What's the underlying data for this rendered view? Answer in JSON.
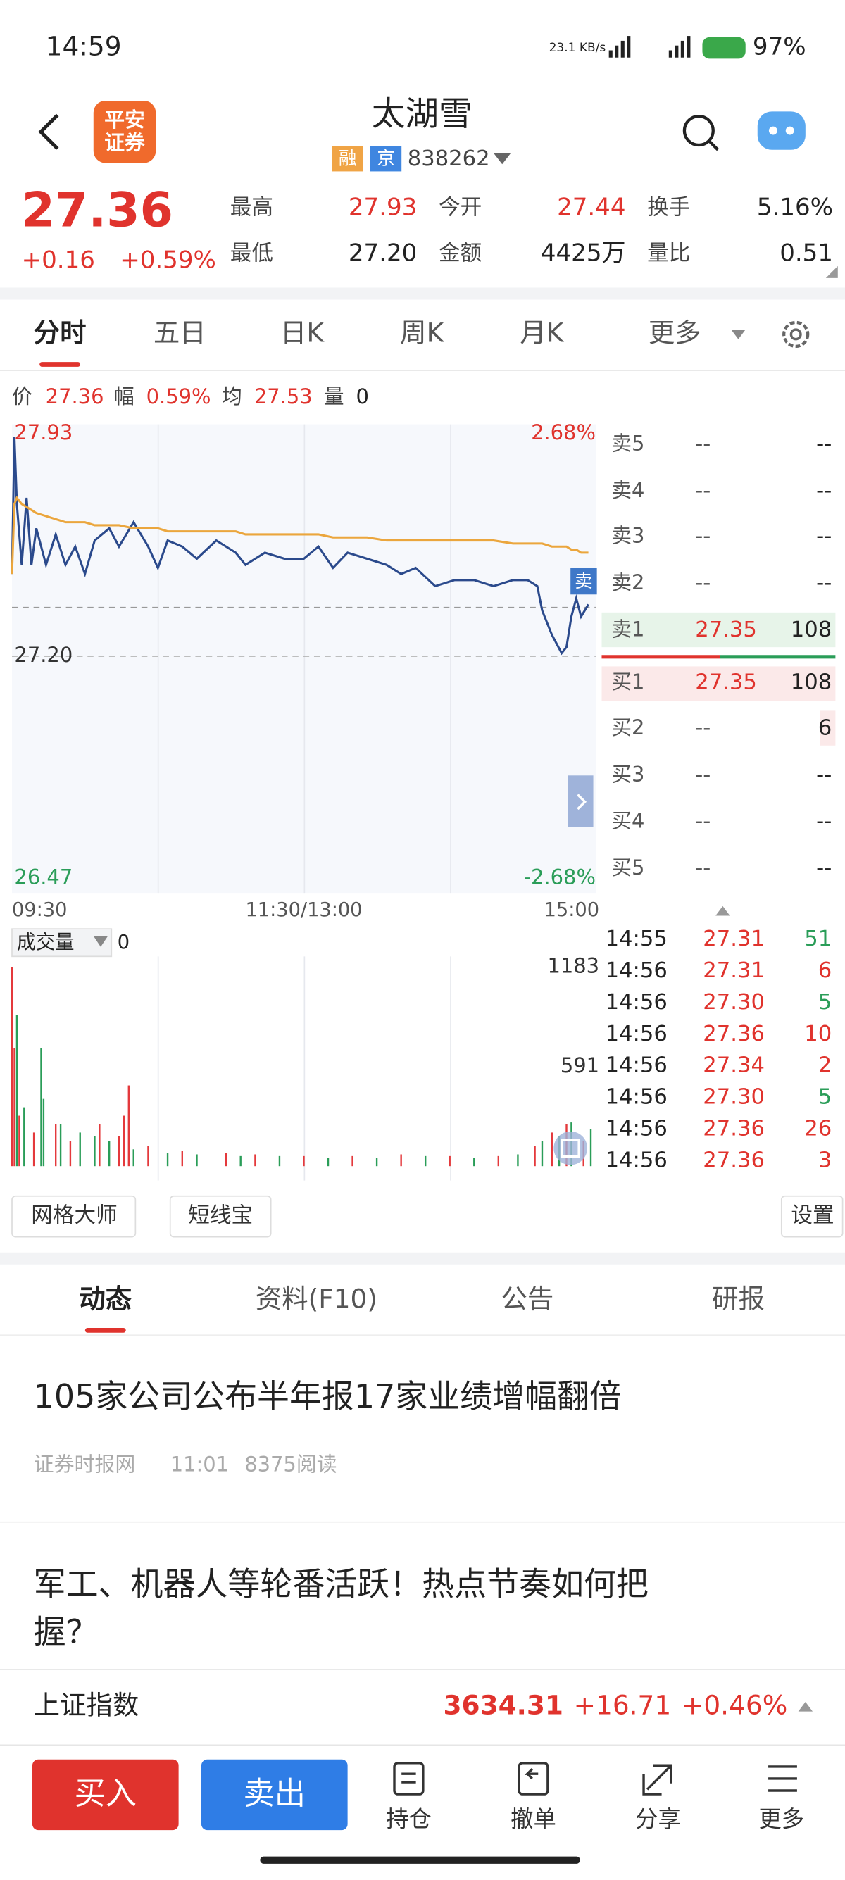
{
  "status_bar": {
    "time": "14:59",
    "net_speed": "23.1 KB/s",
    "battery": "97%"
  },
  "header": {
    "logo_top": "平安",
    "logo_bottom": "证券",
    "title": "太湖雪",
    "tags": [
      "融",
      "京"
    ],
    "code": "838262"
  },
  "quote": {
    "price": "27.36",
    "change": "+0.16",
    "change_pct": "+0.59%",
    "stats": [
      {
        "label": "最高",
        "value": "27.93",
        "color": "#e0332d"
      },
      {
        "label": "今开",
        "value": "27.44",
        "color": "#e0332d"
      },
      {
        "label": "换手",
        "value": "5.16%",
        "color": "#222222"
      },
      {
        "label": "最低",
        "value": "27.20",
        "color": "#222222"
      },
      {
        "label": "金额",
        "value": "4425万",
        "color": "#222222"
      },
      {
        "label": "量比",
        "value": "0.51",
        "color": "#222222"
      }
    ]
  },
  "tabs": [
    "分时",
    "五日",
    "日K",
    "周K",
    "月K",
    "更多"
  ],
  "info_bar": [
    {
      "label": "价",
      "value": "27.36"
    },
    {
      "label": "幅",
      "value": "0.59%"
    },
    {
      "label": "均",
      "value": "27.53"
    },
    {
      "label": "量",
      "value": "0"
    }
  ],
  "chart_data": [
    {
      "type": "line",
      "xlim": [
        0,
        240
      ],
      "xticks": [
        {
          "value": 0,
          "label": "09:30"
        },
        {
          "value": 120,
          "label": "11:30/13:00"
        },
        {
          "value": 240,
          "label": "15:00"
        }
      ],
      "ylim": [
        26.47,
        27.93
      ],
      "yticks": [
        {
          "value": 27.93,
          "label": "27.93"
        },
        {
          "value": 27.2,
          "label": "27.20"
        },
        {
          "value": 26.47,
          "label": "26.47"
        }
      ],
      "y2lim": [
        -2.68,
        2.68
      ],
      "y2ticks": [
        {
          "value": 2.68,
          "label": "2.68%"
        },
        {
          "value": -2.68,
          "label": "-2.68%"
        }
      ],
      "last_price": 27.36,
      "x": [
        0,
        1,
        2,
        4,
        6,
        8,
        10,
        14,
        18,
        22,
        26,
        30,
        34,
        40,
        44,
        50,
        56,
        60,
        64,
        70,
        76,
        84,
        92,
        96,
        104,
        112,
        120,
        126,
        132,
        138,
        146,
        154,
        160,
        166,
        174,
        182,
        190,
        198,
        206,
        212,
        216,
        218,
        222,
        226,
        228,
        230,
        232,
        234,
        237
      ],
      "series": [
        {
          "color": "#2b4a8c",
          "values": [
            27.47,
            27.92,
            27.7,
            27.5,
            27.72,
            27.5,
            27.62,
            27.5,
            27.6,
            27.5,
            27.56,
            27.47,
            27.58,
            27.62,
            27.56,
            27.64,
            27.56,
            27.49,
            27.58,
            27.56,
            27.52,
            27.58,
            27.54,
            27.5,
            27.54,
            27.52,
            27.52,
            27.56,
            27.49,
            27.54,
            27.52,
            27.5,
            27.47,
            27.49,
            27.43,
            27.45,
            27.45,
            27.43,
            27.45,
            27.45,
            27.43,
            27.35,
            27.27,
            27.21,
            27.23,
            27.33,
            27.39,
            27.33,
            27.37
          ]
        },
        {
          "color": "#eba63d",
          "values": [
            27.47,
            27.7,
            27.72,
            27.7,
            27.69,
            27.68,
            27.67,
            27.66,
            27.65,
            27.64,
            27.64,
            27.64,
            27.63,
            27.63,
            27.63,
            27.62,
            27.62,
            27.62,
            27.61,
            27.61,
            27.61,
            27.61,
            27.61,
            27.6,
            27.6,
            27.6,
            27.6,
            27.6,
            27.59,
            27.59,
            27.59,
            27.58,
            27.58,
            27.58,
            27.58,
            27.58,
            27.58,
            27.58,
            27.57,
            27.57,
            27.57,
            27.57,
            27.56,
            27.56,
            27.56,
            27.55,
            27.55,
            27.54,
            27.54
          ]
        }
      ]
    },
    {
      "type": "bar",
      "title": "成交量",
      "current": 0,
      "xlim": [
        0,
        240
      ],
      "ylim": [
        0,
        1183
      ],
      "yticks": [
        1183,
        591
      ],
      "x": [
        0,
        1,
        2,
        3,
        5,
        9,
        12,
        13,
        18,
        20,
        24,
        28,
        34,
        36,
        40,
        44,
        46,
        48,
        50,
        56,
        64,
        70,
        76,
        88,
        94,
        100,
        110,
        120,
        130,
        140,
        150,
        160,
        170,
        180,
        190,
        200,
        208,
        215,
        218,
        222,
        225,
        228,
        230,
        235,
        238
      ],
      "values": [
        1183,
        700,
        900,
        300,
        350,
        200,
        700,
        400,
        250,
        250,
        150,
        200,
        180,
        250,
        150,
        180,
        300,
        480,
        100,
        120,
        80,
        90,
        70,
        80,
        60,
        70,
        60,
        60,
        50,
        60,
        50,
        70,
        60,
        60,
        50,
        60,
        70,
        120,
        150,
        200,
        180,
        250,
        260,
        150,
        220
      ],
      "colors": [
        "#e4393c",
        "#e4393c",
        "#2a9d58",
        "#e4393c",
        "#2a9d58",
        "#e4393c",
        "#2a9d58",
        "#2a9d58",
        "#e4393c",
        "#2a9d58",
        "#e4393c",
        "#2a9d58",
        "#2a9d58",
        "#e4393c",
        "#2a9d58",
        "#e4393c",
        "#e4393c",
        "#e4393c",
        "#2a9d58",
        "#e4393c",
        "#2a9d58",
        "#e4393c",
        "#2a9d58",
        "#e4393c",
        "#2a9d58",
        "#e4393c",
        "#2a9d58",
        "#e4393c",
        "#2a9d58",
        "#e4393c",
        "#2a9d58",
        "#e4393c",
        "#2a9d58",
        "#e4393c",
        "#2a9d58",
        "#e4393c",
        "#2a9d58",
        "#e4393c",
        "#2a9d58",
        "#e4393c",
        "#2a9d58",
        "#e4393c",
        "#2a9d58",
        "#e4393c",
        "#2a9d58"
      ]
    }
  ],
  "order_book": [
    {
      "label": "卖5",
      "price": "--",
      "volume": "--"
    },
    {
      "label": "卖4",
      "price": "--",
      "volume": "--"
    },
    {
      "label": "卖3",
      "price": "--",
      "volume": "--"
    },
    {
      "label": "卖2",
      "price": "--",
      "volume": "--"
    },
    {
      "label": "卖1",
      "price": "27.35",
      "volume": "108"
    },
    {
      "label": "买1",
      "price": "27.35",
      "volume": "108"
    },
    {
      "label": "买2",
      "price": "--",
      "volume": "6"
    },
    {
      "label": "买3",
      "price": "--",
      "volume": "--"
    },
    {
      "label": "买4",
      "price": "--",
      "volume": "--"
    },
    {
      "label": "买5",
      "price": "--",
      "volume": "--"
    }
  ],
  "side_badge": "卖",
  "trades": [
    {
      "time": "14:55",
      "price": "27.31",
      "volume": "51",
      "color": "#2a9d58"
    },
    {
      "time": "14:56",
      "price": "27.31",
      "volume": "6",
      "color": "#e0332d"
    },
    {
      "time": "14:56",
      "price": "27.30",
      "volume": "5",
      "color": "#2a9d58"
    },
    {
      "time": "14:56",
      "price": "27.36",
      "volume": "10",
      "color": "#e0332d"
    },
    {
      "time": "14:56",
      "price": "27.34",
      "volume": "2",
      "color": "#e0332d"
    },
    {
      "time": "14:56",
      "price": "27.30",
      "volume": "5",
      "color": "#2a9d58"
    },
    {
      "time": "14:56",
      "price": "27.36",
      "volume": "26",
      "color": "#e0332d"
    },
    {
      "time": "14:56",
      "price": "27.36",
      "volume": "3",
      "color": "#e0332d"
    }
  ],
  "tools": [
    "网格大师",
    "短线宝",
    "设置"
  ],
  "news_tabs": [
    "动态",
    "资料(F10)",
    "公告",
    "研报"
  ],
  "news": [
    {
      "title": "105家公司公布半年报17家业绩增幅翻倍",
      "source": "证券时报网",
      "time": "11:01",
      "reads": "8375阅读"
    },
    {
      "title": "军工、机器人等轮番活跃！热点节奏如何把握？"
    }
  ],
  "index_bar": {
    "name": "上证指数",
    "value": "3634.31",
    "change": "+16.71",
    "change_pct": "+0.46%"
  },
  "bottom_nav": {
    "buy": "买入",
    "sell": "卖出",
    "items": [
      "持仓",
      "撤单",
      "分享",
      "更多"
    ]
  }
}
